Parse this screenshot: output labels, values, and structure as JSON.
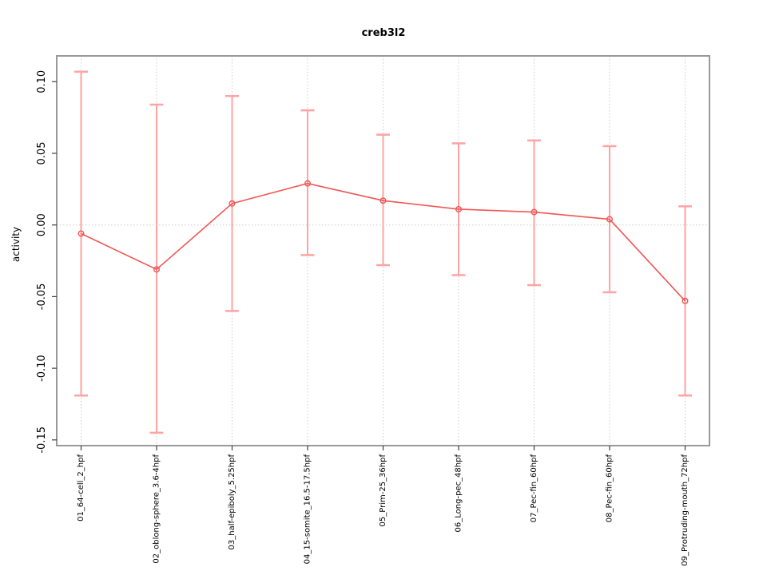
{
  "chart_data": {
    "type": "line",
    "title": "creb3l2",
    "xlabel": "",
    "ylabel": "activity",
    "legend": "none",
    "marker": "open-circle",
    "categories": [
      "01_64-cell_2_hpf",
      "02_oblong-sphere_3.6-4hpf",
      "03_half-epiboly_5.25hpf",
      "04_15-somite_16.5-17.5hpf",
      "05_Prim-25_36hpf",
      "06_Long-pec_48hpf",
      "07_Pec-fin_60hpf",
      "08_Pec-fin_60hpf",
      "09_Protruding-mouth_72hpf"
    ],
    "series": [
      {
        "name": "activity",
        "values": [
          -0.006,
          -0.031,
          0.015,
          0.029,
          0.017,
          0.011,
          0.009,
          0.004,
          -0.053
        ],
        "error_low": [
          -0.119,
          -0.145,
          -0.06,
          -0.021,
          -0.028,
          -0.035,
          -0.042,
          -0.047,
          -0.119
        ],
        "error_high": [
          0.107,
          0.084,
          0.09,
          0.08,
          0.063,
          0.057,
          0.059,
          0.055,
          0.013
        ]
      }
    ],
    "yticks": [
      -0.15,
      -0.1,
      -0.05,
      0.0,
      0.05,
      0.1
    ],
    "ylim": [
      -0.154,
      0.118
    ],
    "grid": {
      "horizontal_at": [
        0
      ],
      "vertical": "each-category",
      "style": "dotted"
    },
    "colors": {
      "point_line": "#f25555",
      "error_bar": "#ffa3a3",
      "grid": "#cccccc",
      "frame": "#999999",
      "tick": "#404040",
      "text": "#000000"
    }
  }
}
